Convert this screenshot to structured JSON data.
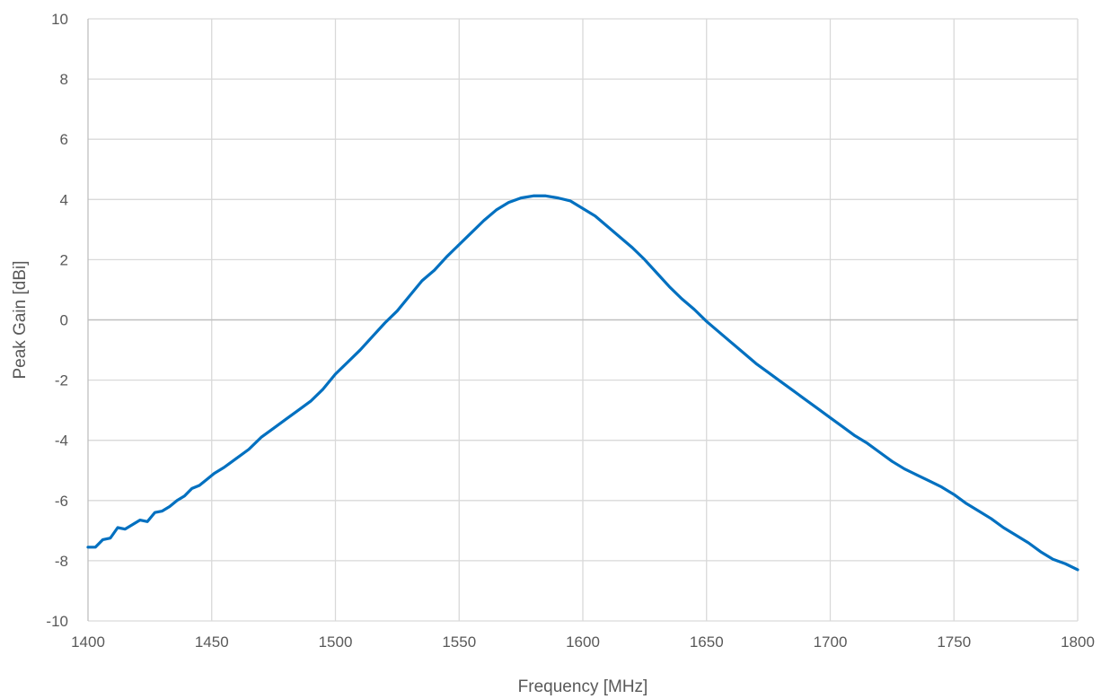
{
  "chart_data": {
    "type": "line",
    "title": "",
    "xlabel": "Frequency [MHz]",
    "ylabel": "Peak Gain [dBi]",
    "xlim": [
      1400,
      1800
    ],
    "ylim": [
      -10,
      10
    ],
    "x_ticks": [
      1400,
      1450,
      1500,
      1550,
      1600,
      1650,
      1700,
      1750,
      1800
    ],
    "y_ticks": [
      -10,
      -8,
      -6,
      -4,
      -2,
      0,
      2,
      4,
      6,
      8,
      10
    ],
    "grid": true,
    "legend": "none",
    "series_color": "#0070C0",
    "gridline_color": "#D9D9D9",
    "series": [
      {
        "x": [
          1400,
          1403,
          1406,
          1409,
          1412,
          1415,
          1418,
          1421,
          1424,
          1427,
          1430,
          1433,
          1436,
          1439,
          1442,
          1445,
          1448,
          1451,
          1455,
          1460,
          1465,
          1470,
          1475,
          1480,
          1485,
          1490,
          1495,
          1500,
          1505,
          1510,
          1515,
          1520,
          1525,
          1530,
          1535,
          1540,
          1545,
          1550,
          1555,
          1560,
          1565,
          1570,
          1575,
          1580,
          1585,
          1590,
          1595,
          1600,
          1605,
          1610,
          1615,
          1620,
          1625,
          1630,
          1635,
          1640,
          1645,
          1650,
          1655,
          1660,
          1665,
          1670,
          1675,
          1680,
          1685,
          1690,
          1695,
          1700,
          1705,
          1710,
          1715,
          1720,
          1725,
          1730,
          1735,
          1740,
          1745,
          1750,
          1755,
          1760,
          1765,
          1770,
          1775,
          1780,
          1785,
          1790,
          1795,
          1800
        ],
        "y": [
          -7.55,
          -7.55,
          -7.3,
          -7.25,
          -6.9,
          -6.95,
          -6.8,
          -6.65,
          -6.7,
          -6.4,
          -6.35,
          -6.2,
          -6.0,
          -5.85,
          -5.6,
          -5.5,
          -5.3,
          -5.1,
          -4.9,
          -4.6,
          -4.3,
          -3.9,
          -3.6,
          -3.3,
          -3.0,
          -2.7,
          -2.3,
          -1.8,
          -1.4,
          -1.0,
          -0.55,
          -0.1,
          0.3,
          0.8,
          1.3,
          1.65,
          2.1,
          2.5,
          2.9,
          3.3,
          3.65,
          3.9,
          4.05,
          4.12,
          4.12,
          4.05,
          3.95,
          3.7,
          3.45,
          3.1,
          2.75,
          2.4,
          2.0,
          1.55,
          1.1,
          0.7,
          0.35,
          -0.05,
          -0.4,
          -0.75,
          -1.1,
          -1.45,
          -1.75,
          -2.05,
          -2.35,
          -2.65,
          -2.95,
          -3.25,
          -3.55,
          -3.85,
          -4.1,
          -4.4,
          -4.7,
          -4.95,
          -5.15,
          -5.35,
          -5.55,
          -5.8,
          -6.1,
          -6.35,
          -6.6,
          -6.9,
          -7.15,
          -7.4,
          -7.7,
          -7.95,
          -8.1,
          -8.3
        ]
      }
    ]
  }
}
